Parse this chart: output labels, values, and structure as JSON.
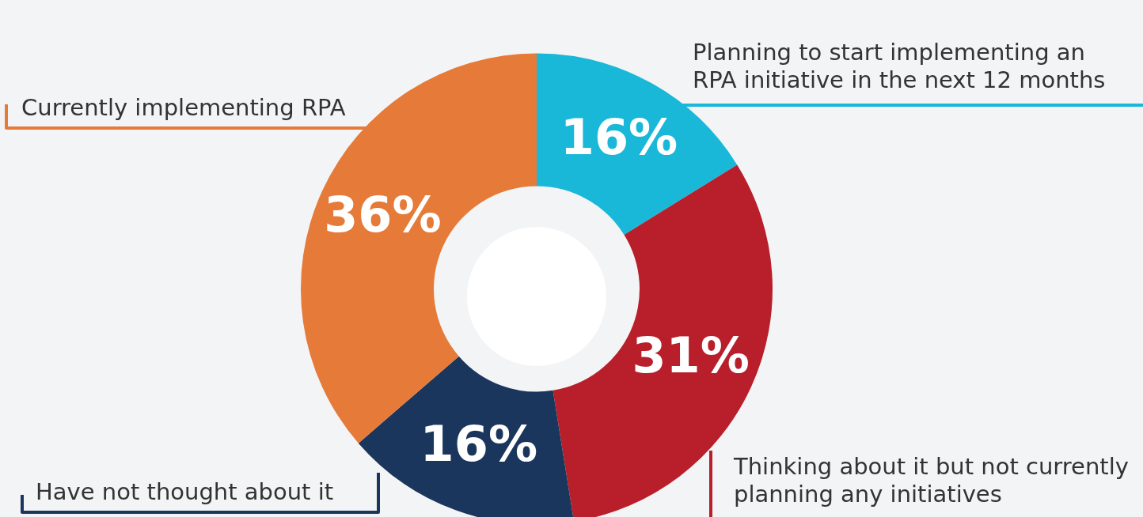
{
  "chart_data": {
    "type": "donut",
    "categories": [
      "Planning to start implementing an RPA initiative in the next 12 months",
      "Thinking about it but not currently planning any initiatives",
      "Have not thought about it",
      "Currently implementing RPA"
    ],
    "values": [
      16,
      31,
      16,
      36
    ],
    "colors": [
      "#19b8d9",
      "#b81f2a",
      "#1b365d",
      "#e67a38"
    ],
    "value_labels": [
      "16%",
      "31%",
      "16%",
      "36%"
    ],
    "legend": false
  }
}
